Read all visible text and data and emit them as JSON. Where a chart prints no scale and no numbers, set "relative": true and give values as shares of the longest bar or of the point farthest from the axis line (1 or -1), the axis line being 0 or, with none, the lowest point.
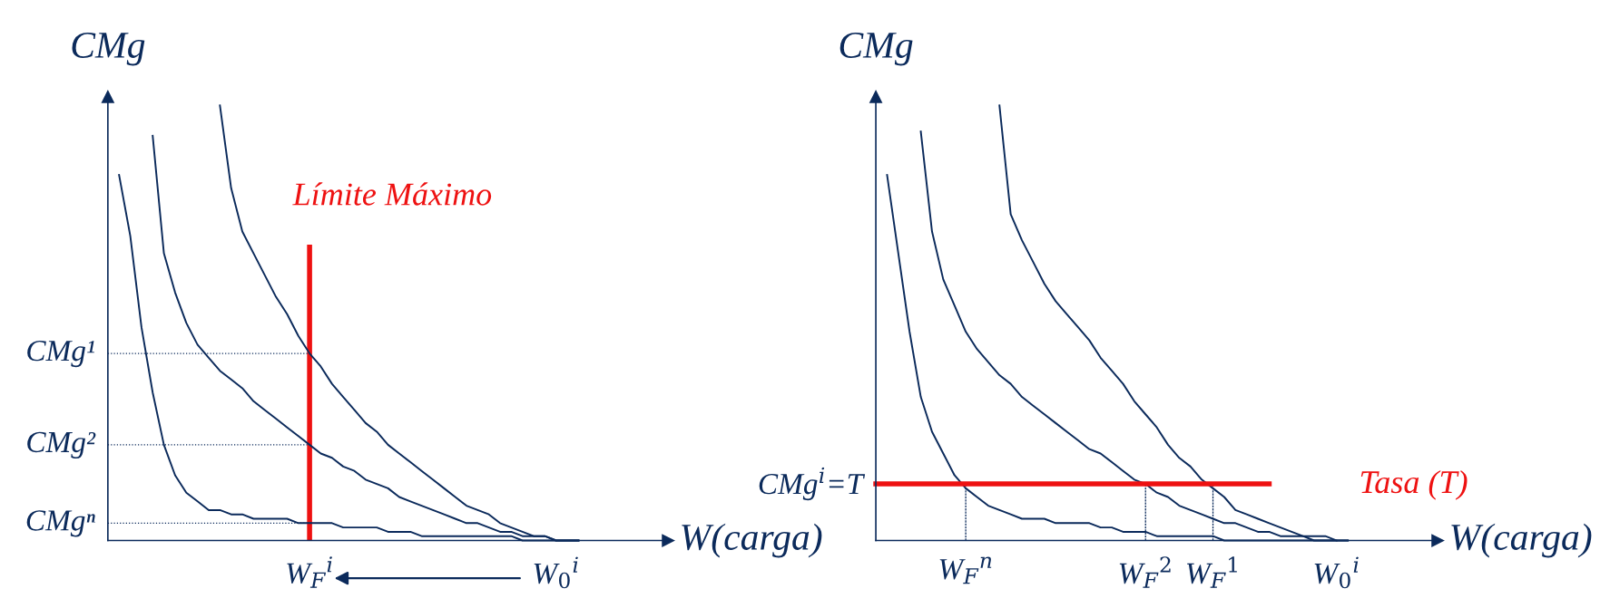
{
  "chart_data": [
    {
      "type": "line",
      "relative": true,
      "xlabel": "W(carga)",
      "ylabel": "CMg",
      "legend": false,
      "grid": false,
      "marker": "none",
      "categories": [
        null,
        null,
        null,
        null,
        null,
        null,
        null,
        null,
        null,
        null,
        null,
        null,
        null,
        null,
        null,
        null,
        null,
        null,
        "W$_{F}$$^{i}$",
        null,
        null,
        null,
        null,
        null,
        null,
        null,
        null,
        null,
        null,
        null,
        null,
        null,
        null,
        null,
        null,
        null,
        null,
        null,
        null,
        null,
        "W$_{0}$$^{i}$",
        null,
        null,
        null,
        null,
        null,
        null,
        null,
        null,
        null,
        null
      ],
      "annotations": [
        "Límite Máximo",
        "CMg¹",
        "CMg²",
        "CMgⁿ"
      ],
      "series": [
        {
          "color": "#0b2a5b",
          "line_style": "solid",
          "values": [
            null,
            0.84,
            0.7,
            0.49,
            0.34,
            0.22,
            0.15,
            0.11,
            0.09,
            0.07,
            0.07,
            0.06,
            0.06,
            0.05,
            0.05,
            0.05,
            0.05,
            0.04,
            0.04,
            0.04,
            0.04,
            0.03,
            0.03,
            0.03,
            0.03,
            0.02,
            0.02,
            0.02,
            0.01,
            0.01,
            0.01,
            0.01,
            0.01,
            0.01,
            0.01,
            0.01,
            0.01,
            0,
            0,
            0,
            0,
            0,
            0,
            null,
            null,
            null,
            null,
            null,
            null,
            null,
            null
          ]
        },
        {
          "color": "#0b2a5b",
          "line_style": "solid",
          "values": [
            null,
            null,
            null,
            null,
            0.93,
            0.66,
            0.57,
            0.5,
            0.45,
            0.42,
            0.39,
            0.37,
            0.35,
            0.32,
            0.3,
            0.28,
            0.26,
            0.24,
            0.22,
            0.2,
            0.19,
            0.17,
            0.16,
            0.14,
            0.13,
            0.12,
            0.1,
            0.09,
            0.08,
            0.07,
            0.06,
            0.05,
            0.04,
            0.04,
            0.03,
            0.02,
            0.02,
            0.01,
            0.01,
            0.01,
            0,
            0,
            0,
            null,
            null,
            null,
            null,
            null,
            null,
            null,
            null
          ]
        },
        {
          "color": "#0b2a5b",
          "line_style": "solid",
          "values": [
            null,
            null,
            null,
            null,
            null,
            null,
            null,
            null,
            null,
            null,
            1.0,
            0.81,
            0.71,
            0.66,
            0.61,
            0.56,
            0.52,
            0.47,
            0.43,
            0.4,
            0.36,
            0.33,
            0.3,
            0.27,
            0.25,
            0.22,
            0.2,
            0.18,
            0.16,
            0.14,
            0.12,
            0.1,
            0.08,
            0.07,
            0.06,
            0.04,
            0.03,
            0.02,
            0.01,
            0.01,
            0,
            0,
            0,
            null,
            null,
            null,
            null,
            null,
            null,
            null,
            null
          ]
        },
        {
          "type": "bar",
          "color": "#ee1111",
          "line_style": "solid",
          "values": [
            null,
            null,
            null,
            null,
            null,
            null,
            null,
            null,
            null,
            null,
            null,
            null,
            null,
            null,
            null,
            null,
            null,
            null,
            0.68,
            null,
            null,
            null,
            null,
            null,
            null,
            null,
            null,
            null,
            null,
            null,
            null,
            null,
            null,
            null,
            null,
            null,
            null,
            null,
            null,
            null,
            null,
            null,
            null,
            null,
            null,
            null,
            null,
            null,
            null,
            null,
            null
          ]
        },
        {
          "color": "#0b2a5b",
          "line_style": "dotted",
          "values": [
            0.43,
            0.43,
            0.43,
            0.43,
            0.43,
            0.43,
            0.43,
            0.43,
            0.43,
            0.43,
            0.43,
            0.43,
            0.43,
            0.43,
            0.43,
            0.43,
            0.43,
            0.43,
            0.43,
            null,
            null,
            null,
            null,
            null,
            null,
            null,
            null,
            null,
            null,
            null,
            null,
            null,
            null,
            null,
            null,
            null,
            null,
            null,
            null,
            null,
            null,
            null,
            null,
            null,
            null,
            null,
            null,
            null,
            null,
            null,
            null
          ]
        },
        {
          "color": "#0b2a5b",
          "line_style": "dotted",
          "values": [
            0.22,
            0.22,
            0.22,
            0.22,
            0.22,
            0.22,
            0.22,
            0.22,
            0.22,
            0.22,
            0.22,
            0.22,
            0.22,
            0.22,
            0.22,
            0.22,
            0.22,
            0.22,
            0.22,
            null,
            null,
            null,
            null,
            null,
            null,
            null,
            null,
            null,
            null,
            null,
            null,
            null,
            null,
            null,
            null,
            null,
            null,
            null,
            null,
            null,
            null,
            null,
            null,
            null,
            null,
            null,
            null,
            null,
            null,
            null,
            null
          ]
        },
        {
          "color": "#0b2a5b",
          "line_style": "dotted",
          "values": [
            0.04,
            0.04,
            0.04,
            0.04,
            0.04,
            0.04,
            0.04,
            0.04,
            0.04,
            0.04,
            0.04,
            0.04,
            0.04,
            0.04,
            0.04,
            0.04,
            0.04,
            0.04,
            0.04,
            null,
            null,
            null,
            null,
            null,
            null,
            null,
            null,
            null,
            null,
            null,
            null,
            null,
            null,
            null,
            null,
            null,
            null,
            null,
            null,
            null,
            null,
            null,
            null,
            null,
            null,
            null,
            null,
            null,
            null,
            null,
            null
          ]
        }
      ]
    },
    {
      "type": "line",
      "relative": true,
      "xlabel": "W(carga)",
      "ylabel": "CMg",
      "legend": false,
      "grid": false,
      "marker": "none",
      "categories": [
        null,
        null,
        null,
        null,
        null,
        null,
        null,
        null,
        "W$_{F}$$^{n}$",
        null,
        null,
        null,
        null,
        null,
        null,
        null,
        null,
        null,
        null,
        null,
        null,
        null,
        null,
        null,
        "W$_{F}$$^{2}$",
        null,
        null,
        null,
        null,
        null,
        "W$_{F}$$^{1}$",
        null,
        null,
        null,
        null,
        null,
        null,
        null,
        null,
        null,
        null,
        "W$_{0}$$^{i}$",
        null,
        null,
        null,
        null,
        null,
        null,
        null,
        null,
        null
      ],
      "annotations": [
        "Tasa (T)",
        "CMg$^{i}$=T"
      ],
      "series": [
        {
          "color": "#0b2a5b",
          "line_style": "solid",
          "values": [
            null,
            0.84,
            0.66,
            0.48,
            0.33,
            0.25,
            0.2,
            0.15,
            0.12,
            0.1,
            0.08,
            0.07,
            0.06,
            0.05,
            0.05,
            0.05,
            0.04,
            0.04,
            0.04,
            0.04,
            0.03,
            0.03,
            0.02,
            0.02,
            0.02,
            0.01,
            0.01,
            0.01,
            0.01,
            0.01,
            0.01,
            0,
            0,
            0,
            0,
            0,
            0,
            0,
            0,
            0,
            0,
            0,
            0,
            null,
            null,
            null,
            null,
            null,
            null,
            null,
            null
          ]
        },
        {
          "color": "#0b2a5b",
          "line_style": "solid",
          "values": [
            null,
            null,
            null,
            null,
            0.94,
            0.71,
            0.6,
            0.54,
            0.48,
            0.44,
            0.41,
            0.38,
            0.36,
            0.33,
            0.31,
            0.29,
            0.27,
            0.25,
            0.23,
            0.21,
            0.2,
            0.18,
            0.16,
            0.14,
            0.13,
            0.11,
            0.1,
            0.08,
            0.07,
            0.06,
            0.05,
            0.04,
            0.04,
            0.03,
            0.02,
            0.02,
            0.01,
            0.01,
            0.01,
            0,
            0,
            0,
            0,
            null,
            null,
            null,
            null,
            null,
            null,
            null,
            null
          ]
        },
        {
          "color": "#0b2a5b",
          "line_style": "solid",
          "values": [
            null,
            null,
            null,
            null,
            null,
            null,
            null,
            null,
            null,
            null,
            null,
            1.0,
            0.75,
            0.69,
            0.64,
            0.59,
            0.55,
            0.52,
            0.49,
            0.46,
            0.42,
            0.39,
            0.36,
            0.32,
            0.29,
            0.26,
            0.22,
            0.19,
            0.17,
            0.14,
            0.12,
            0.1,
            0.07,
            0.06,
            0.05,
            0.04,
            0.03,
            0.02,
            0.01,
            0.01,
            0.01,
            0,
            null,
            null,
            null,
            null,
            null,
            null,
            null,
            null,
            null
          ]
        },
        {
          "color": "#ee1111",
          "line_style": "solid",
          "values": [
            0.13,
            0.13,
            0.13,
            0.13,
            0.13,
            0.13,
            0.13,
            0.13,
            0.13,
            0.13,
            0.13,
            0.13,
            0.13,
            0.13,
            0.13,
            0.13,
            0.13,
            0.13,
            0.13,
            0.13,
            0.13,
            0.13,
            0.13,
            0.13,
            0.13,
            0.13,
            0.13,
            0.13,
            0.13,
            0.13,
            0.13,
            0.13,
            0.13,
            0.13,
            0.13,
            0.13,
            null,
            null,
            null,
            null,
            null,
            null,
            null,
            null,
            null,
            null,
            null,
            null,
            null,
            null,
            null
          ]
        },
        {
          "type": "bar",
          "color": "#0b2a5b",
          "line_style": "dotted",
          "values": [
            null,
            null,
            null,
            null,
            null,
            null,
            null,
            null,
            0.13,
            null,
            null,
            null,
            null,
            null,
            null,
            null,
            null,
            null,
            null,
            null,
            null,
            null,
            null,
            null,
            0.13,
            null,
            null,
            null,
            null,
            null,
            0.13,
            null,
            null,
            null,
            null,
            null,
            null,
            null,
            null,
            null,
            null,
            null,
            null,
            null,
            null,
            null,
            null,
            null,
            null,
            null,
            null
          ]
        }
      ]
    }
  ]
}
